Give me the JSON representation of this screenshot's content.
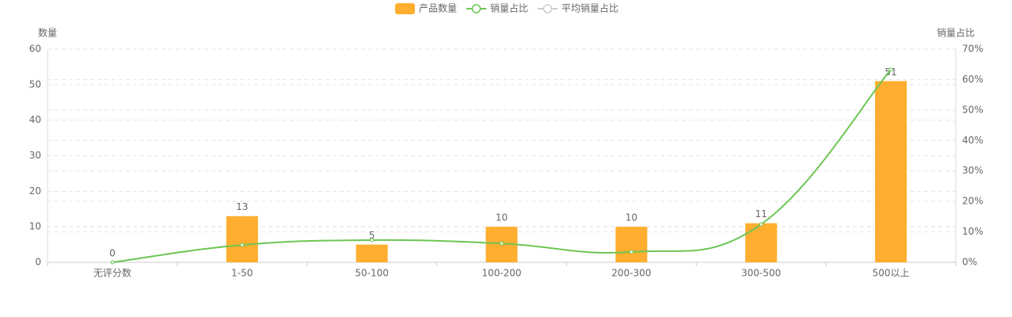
{
  "chart_data": {
    "type": "bar_line",
    "y_label": "数量",
    "y2_label": "销量占比",
    "categories": [
      "无评分数",
      "1-50",
      "50-100",
      "100-200",
      "200-300",
      "300-500",
      "500以上"
    ],
    "series": [
      {
        "name": "产品数量",
        "type": "bar",
        "color": "#ffae2f",
        "values": [
          0,
          13,
          5,
          10,
          10,
          11,
          51
        ]
      },
      {
        "name": "销量占比",
        "type": "line",
        "axis": "y2",
        "color": "#6cc654",
        "values": [
          0,
          5.7,
          7.3,
          6.2,
          3.4,
          12.5,
          63.3
        ]
      }
    ],
    "legend_extra": [
      {
        "name": "平均销量占比",
        "color": "#cccccc",
        "inactive": true
      }
    ],
    "ylim": [
      0,
      60
    ],
    "yticks": [
      0,
      10,
      20,
      30,
      40,
      50,
      60
    ],
    "y2lim": [
      0,
      70
    ],
    "y2ticks": [
      {
        "value": 0,
        "label": "0%"
      },
      {
        "value": 10,
        "label": "10%"
      },
      {
        "value": 20,
        "label": "20%"
      },
      {
        "value": 30,
        "label": "30%"
      },
      {
        "value": 40,
        "label": "40%"
      },
      {
        "value": 50,
        "label": "50%"
      },
      {
        "value": 60,
        "label": "60%"
      },
      {
        "value": 70,
        "label": "70%"
      }
    ],
    "grid": true,
    "legend_position": "top"
  }
}
